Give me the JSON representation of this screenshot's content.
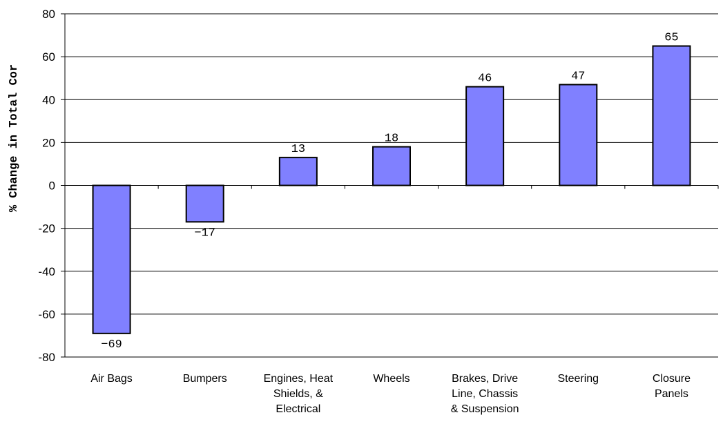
{
  "chart_data": {
    "type": "bar",
    "title": "",
    "xlabel": "",
    "ylabel": "% Change in Total Cor",
    "ylim": [
      -80,
      80
    ],
    "y_ticks": [
      80,
      60,
      40,
      20,
      0,
      -20,
      -40,
      -60,
      -80
    ],
    "y_tick_labels": [
      "80",
      "60",
      "40",
      "20",
      "0",
      "-20",
      "-40",
      "-60",
      "-80"
    ],
    "grid": true,
    "categories": [
      [
        "Air Bags"
      ],
      [
        "Bumpers"
      ],
      [
        "Engines, Heat",
        "Shields, &",
        "Electrical"
      ],
      [
        "Wheels"
      ],
      [
        "Brakes, Drive",
        "Line, Chassis",
        "& Suspension"
      ],
      [
        "Steering"
      ],
      [
        "Closure",
        "Panels"
      ]
    ],
    "values": [
      -69,
      -17,
      13,
      18,
      46,
      47,
      65
    ],
    "data_labels": [
      "−69",
      "−17",
      "13",
      "18",
      "46",
      "47",
      "65"
    ],
    "bar_color": "#8080ff",
    "bar_stroke": "#000000"
  }
}
